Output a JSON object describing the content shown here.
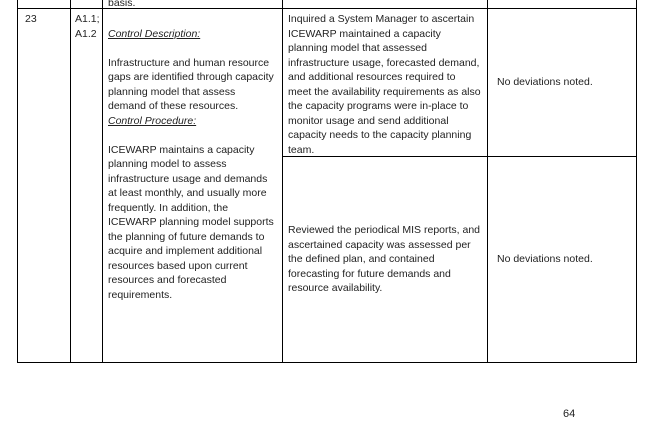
{
  "page": {
    "number": "64",
    "background_color": "#ffffff",
    "text_color": "#1f1f1f",
    "border_color": "#000000"
  },
  "table": {
    "partial_top_row": {
      "clipped_text": "basis."
    },
    "control_row": {
      "id": "23",
      "criteria": [
        "A1.1;",
        "A1.2"
      ],
      "description_heading": "Control Description:",
      "description_text": "Infrastructure and human resource gaps are identified through capacity planning model that assess demand of these resources.",
      "procedure_heading": "Control Procedure:",
      "procedure_text": "ICEWARP maintains a capacity planning model to assess infrastructure usage and demands at least monthly, and usually more frequently. In addition, the ICEWARP planning model supports the planning of future demands to acquire and implement additional resources based upon current resources and forecasted requirements.",
      "tests": [
        {
          "procedure": "Inquired a System Manager to ascertain ICEWARP maintained a capacity planning model that assessed infrastructure usage, forecasted demand, and additional resources required to meet the availability requirements as also the capacity programs were in-place to monitor usage and send additional capacity needs to the capacity planning team.",
          "result": "No deviations noted."
        },
        {
          "procedure": "Reviewed the periodical MIS reports, and ascertained capacity was assessed per the defined plan, and contained forecasting for future demands and resource availability.",
          "result": "No deviations noted."
        }
      ]
    }
  }
}
